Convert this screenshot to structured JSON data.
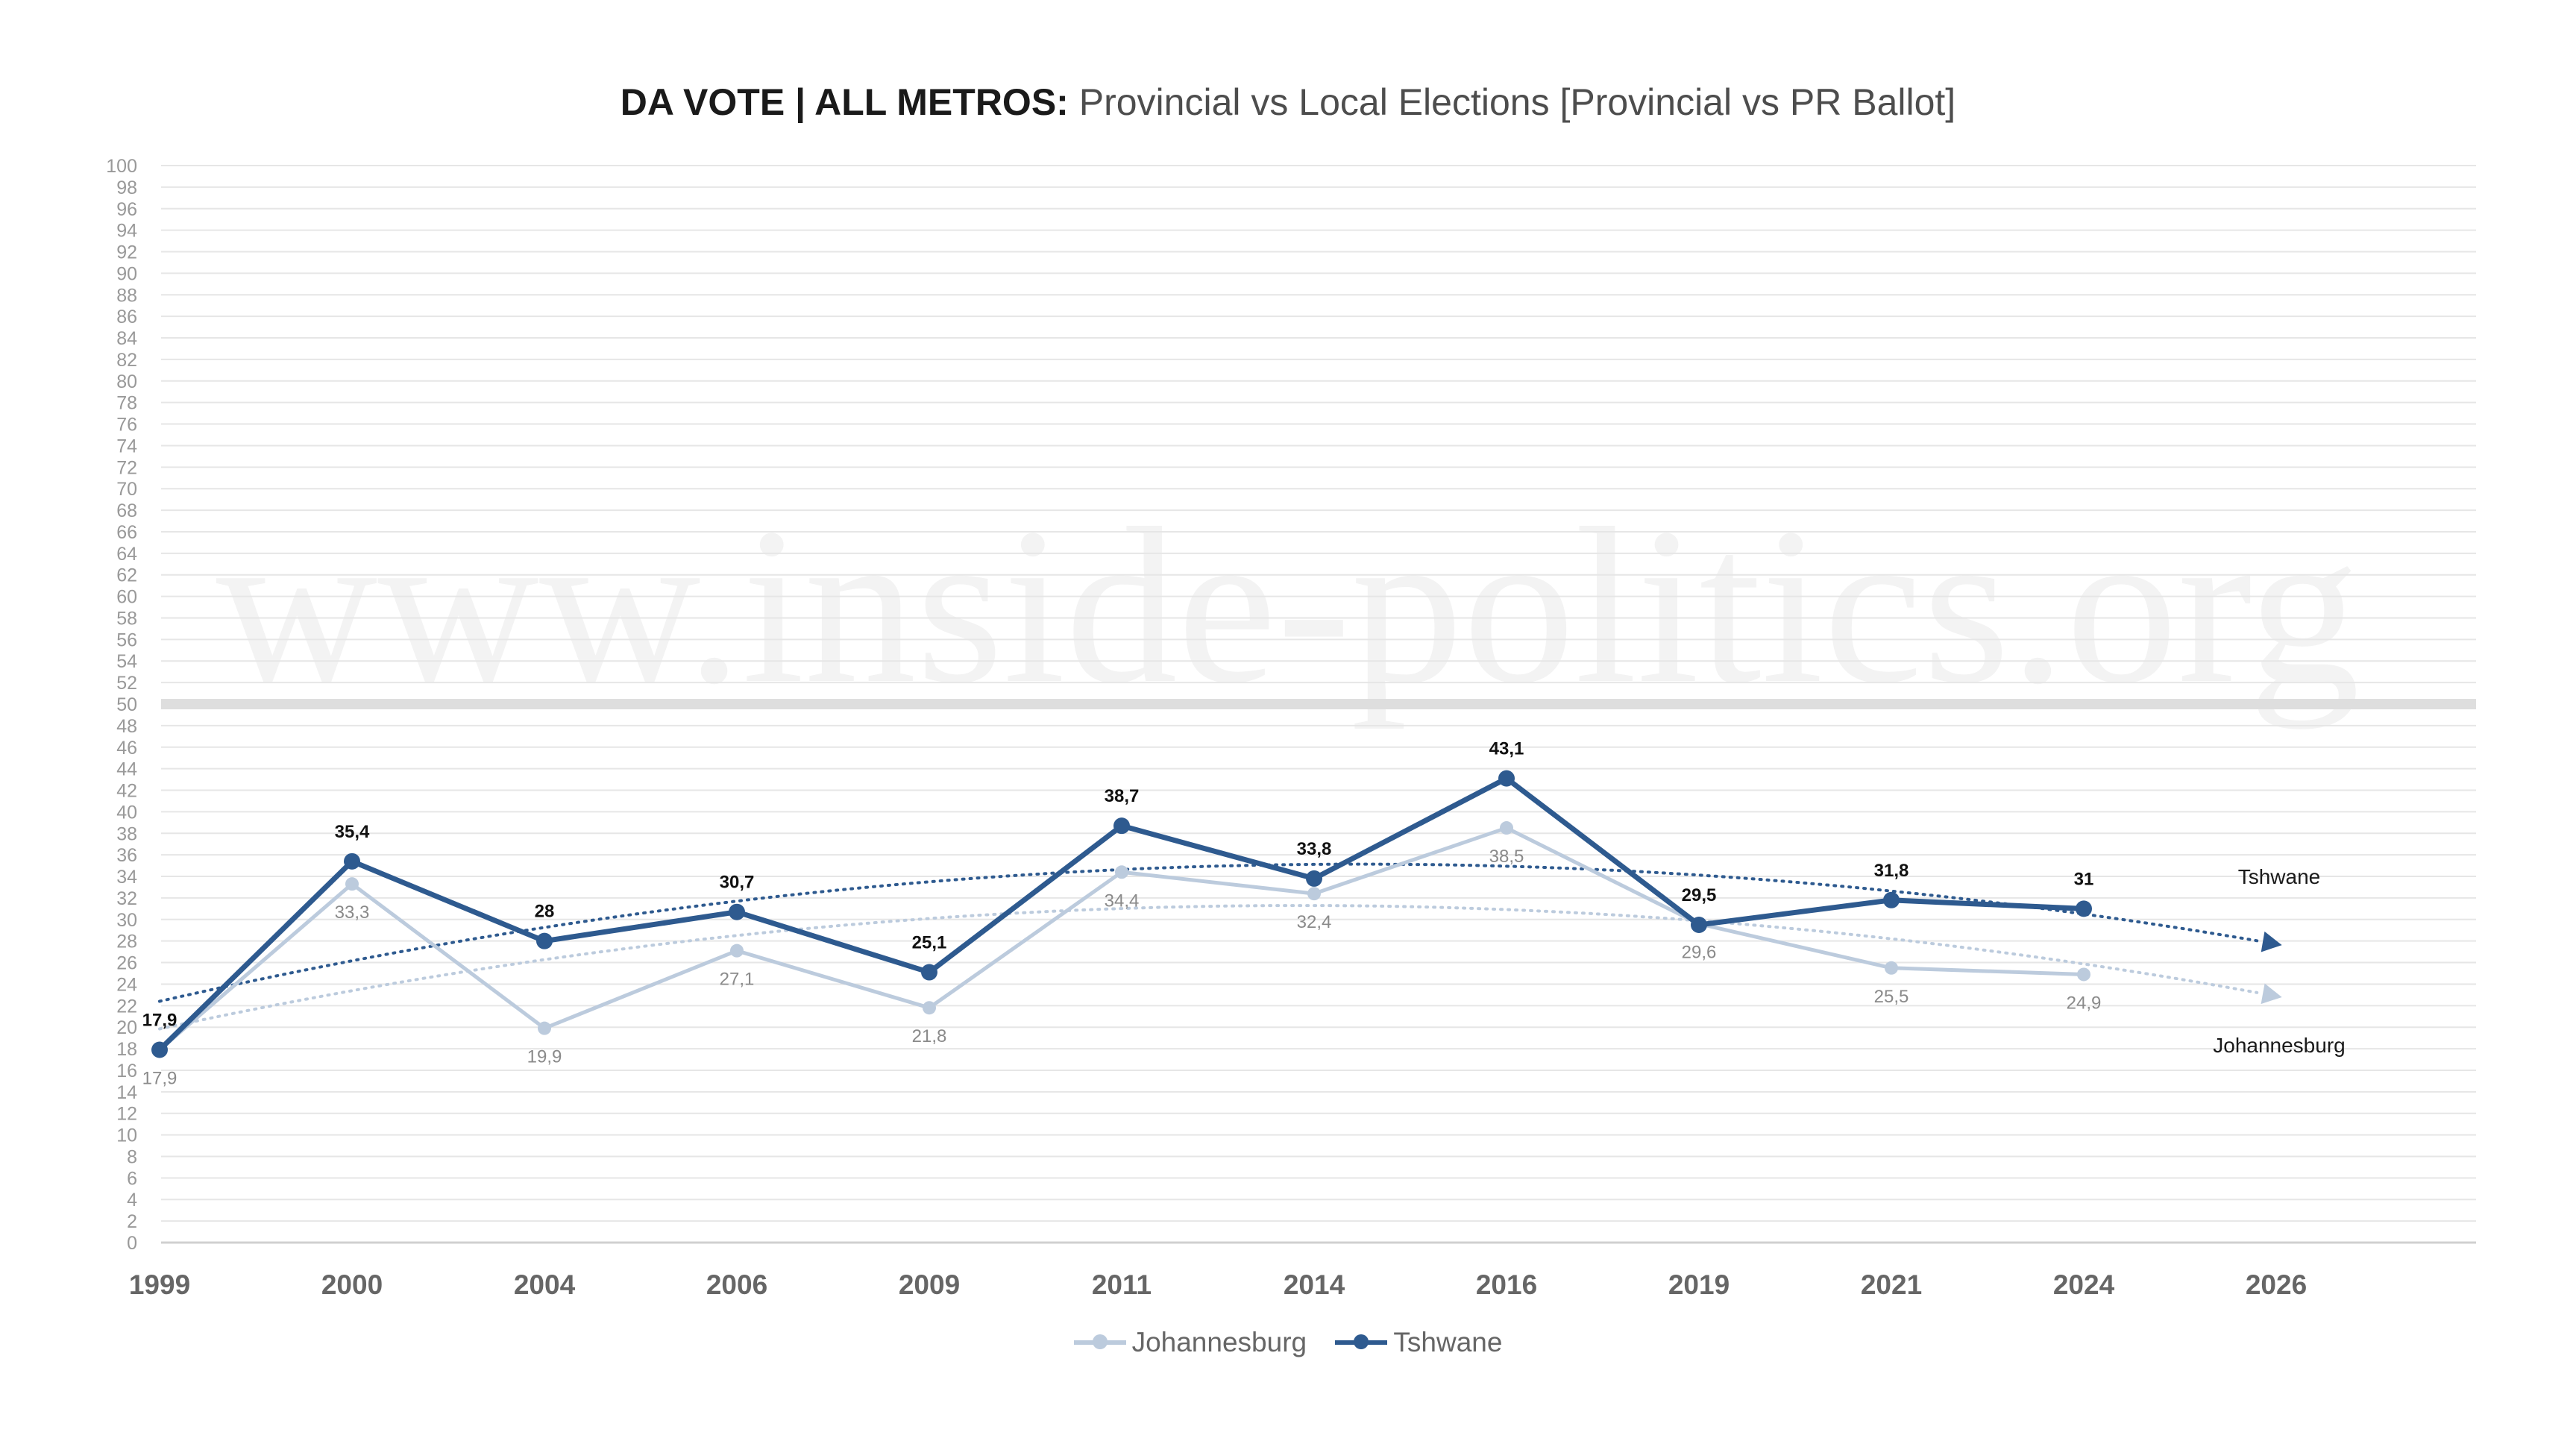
{
  "title_bold": "DA VOTE | ALL METROS:",
  "title_rest": "Provincial vs Local Elections [Provincial vs PR Ballot]",
  "watermark": "www.inside-politics.org",
  "colors": {
    "tshwane": "#2e5a8f",
    "johannesburg": "#bccbdd",
    "grid": "#e6e6e6",
    "axis": "#d0d0d0",
    "band": "#dedede"
  },
  "chart_data": {
    "type": "line",
    "title": "DA VOTE | ALL METROS: Provincial vs Local Elections [Provincial vs PR Ballot]",
    "categories": [
      "1999",
      "2000",
      "2004",
      "2006",
      "2009",
      "2011",
      "2014",
      "2016",
      "2019",
      "2021",
      "2024",
      "2026"
    ],
    "ylim": [
      0,
      100
    ],
    "ytick_step": 2,
    "reference_band": 50,
    "series": [
      {
        "name": "Johannesburg",
        "values": [
          17.9,
          33.3,
          19.9,
          27.1,
          21.8,
          34.4,
          32.4,
          38.5,
          29.6,
          25.5,
          24.9,
          null
        ],
        "labels": [
          "17,9",
          "33,3",
          "19,9",
          "27,1",
          "21,8",
          "34,4",
          "32,4",
          "38,5",
          "29,6",
          "25,5",
          "24,9",
          ""
        ],
        "trend_label": "Johannesburg"
      },
      {
        "name": "Tshwane",
        "values": [
          17.9,
          35.4,
          28,
          30.7,
          25.1,
          38.7,
          33.8,
          43.1,
          29.5,
          31.8,
          31,
          null
        ],
        "labels": [
          "17,9",
          "35,4",
          "28",
          "30,7",
          "25,1",
          "38,7",
          "33,8",
          "43,1",
          "29,5",
          "31,8",
          "31",
          ""
        ],
        "trend_label": "Tshwane"
      }
    ],
    "legend": [
      "Johannesburg",
      "Tshwane"
    ],
    "legend_position": "bottom-center"
  }
}
